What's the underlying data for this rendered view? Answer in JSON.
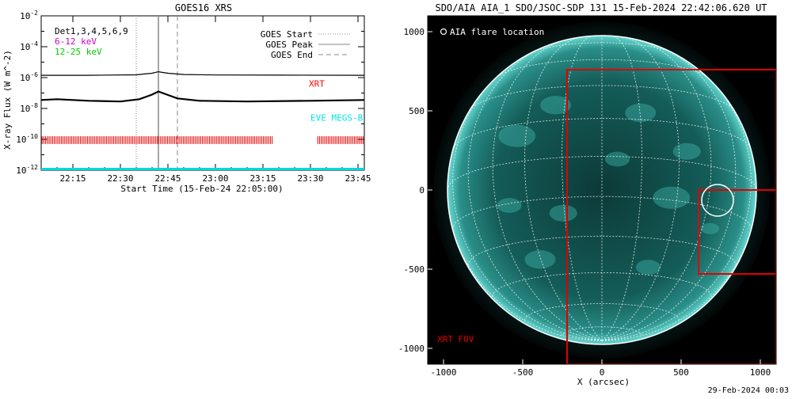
{
  "chart_data": [
    {
      "type": "line",
      "title": "GOES16 XRS",
      "ylabel": "X-ray Flux (W m^-2)",
      "xlabel": "Start Time (15-Feb-24 22:05:00)",
      "yscale": "log",
      "ylim": [
        1e-12,
        0.01
      ],
      "xlim_minutes_after_22_00": [
        5,
        107
      ],
      "ytick_exponents": [
        "-2",
        "-4",
        "-6",
        "-8",
        "-10",
        "-12"
      ],
      "xtick_labels": [
        "22:15",
        "22:30",
        "22:45",
        "23:00",
        "23:15",
        "23:30",
        "23:45"
      ],
      "xtick_minutes": [
        15,
        30,
        45,
        60,
        75,
        90,
        105
      ],
      "legend_left": [
        {
          "label": "Det1,3,4,5,6,9",
          "color": "#000000"
        },
        {
          "label": "6-12 keV",
          "color": "#cc00cc"
        },
        {
          "label": "12-25 keV",
          "color": "#00cc00"
        }
      ],
      "legend_right": [
        {
          "label": "GOES Start",
          "style": "dotted"
        },
        {
          "label": "GOES Peak",
          "style": "solid"
        },
        {
          "label": "GOES End",
          "style": "dashed"
        }
      ],
      "annotations": [
        {
          "label": "XRT",
          "color": "#ff0000"
        },
        {
          "label": "EVE MEGS-B",
          "color": "#00e5e5"
        }
      ],
      "event_lines_minutes": {
        "start": 35,
        "peak": 42,
        "end": 48
      },
      "series": [
        {
          "name": "",
          "color": "#000000",
          "x_minutes": [
            5,
            20,
            35,
            40,
            42,
            45,
            50,
            60,
            80,
            107
          ],
          "log10_flux": [
            -5.85,
            -5.85,
            -5.82,
            -5.72,
            -5.62,
            -5.72,
            -5.8,
            -5.83,
            -5.84,
            -5.85
          ]
        },
        {
          "name": "",
          "color": "#000000",
          "x_minutes": [
            5,
            10,
            20,
            30,
            36,
            40,
            42,
            44,
            48,
            55,
            70,
            90,
            107
          ],
          "log10_flux": [
            -7.45,
            -7.4,
            -7.5,
            -7.55,
            -7.4,
            -7.1,
            -6.9,
            -7.05,
            -7.35,
            -7.5,
            -7.55,
            -7.5,
            -7.45
          ]
        }
      ],
      "xrt_coverage_minutes": [
        [
          5,
          78
        ],
        [
          92,
          107
        ]
      ],
      "eve_level_log10": -12
    },
    {
      "type": "image",
      "title": "SDO/AIA AIA_1 SDO/JSOC-SDP 131 15-Feb-2024 22:42:06.620 UT",
      "xlabel": "X (arcsec)",
      "xlim": [
        -1100,
        1100
      ],
      "ylim": [
        -1100,
        1100
      ],
      "xtick_labels": [
        "-1000",
        "-500",
        "0",
        "500",
        "1000"
      ],
      "ytick_labels": [
        "1000",
        "500",
        "0",
        "-500",
        "-1000"
      ],
      "ticks": [
        -1000,
        -500,
        0,
        500,
        1000
      ],
      "solar_radius_arcsec": 975,
      "legend": "AIA flare location",
      "fov_label": "XRT FOV",
      "xrt_fov_arcsec": {
        "x": [
          -220,
          1100
        ],
        "y": [
          -1100,
          760
        ]
      },
      "xrt_small_fov_arcsec": {
        "x": [
          610,
          1100
        ],
        "y": [
          -530,
          0
        ]
      },
      "flare_location_arcsec": [
        730,
        -65
      ],
      "flare_radius_arcsec": 100,
      "footer": "29-Feb-2024 00:03"
    }
  ]
}
